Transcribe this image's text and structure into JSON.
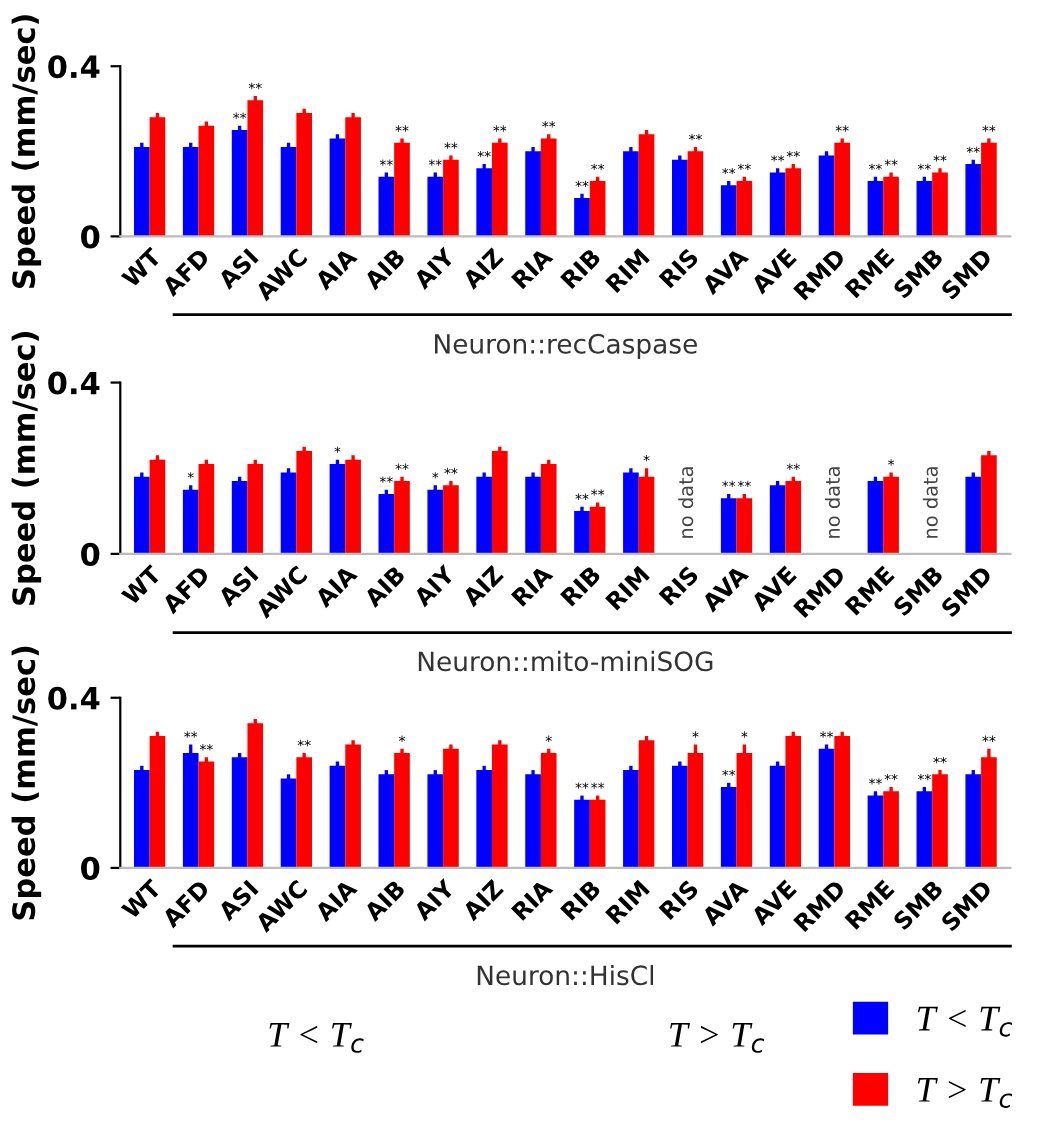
{
  "chart_data": [
    {
      "type": "bar",
      "xlabel": "Neuron::recCaspase",
      "ylabel": "Speed (mm/sec)",
      "categories": [
        "WT",
        "AFD",
        "ASI",
        "AWC",
        "AIA",
        "AIB",
        "AIY",
        "AIZ",
        "RIA",
        "RIB",
        "RIM",
        "RIS",
        "AVA",
        "AVE",
        "RMD",
        "RME",
        "SMB",
        "SMD"
      ],
      "series": [
        {
          "name": "T < T$_{c}$",
          "color": "#0000ff",
          "values": [
            0.21,
            0.21,
            0.25,
            0.21,
            0.23,
            0.14,
            0.14,
            0.16,
            0.2,
            0.09,
            0.2,
            0.18,
            0.12,
            0.15,
            0.19,
            0.13,
            0.13,
            0.17
          ],
          "errors": [
            0.01,
            0.01,
            0.01,
            0.01,
            0.01,
            0.01,
            0.01,
            0.01,
            0.01,
            0.01,
            0.01,
            0.01,
            0.01,
            0.01,
            0.01,
            0.01,
            0.01,
            0.01
          ],
          "value_labels": [
            null,
            null,
            "**",
            null,
            null,
            "**",
            "**",
            "**",
            null,
            "**",
            null,
            null,
            "**",
            "**",
            null,
            "**",
            "**",
            "**"
          ]
        },
        {
          "name": "T > T$_{c}$",
          "color": "#ff0000",
          "values": [
            0.28,
            0.26,
            0.32,
            0.29,
            0.28,
            0.22,
            0.18,
            0.22,
            0.23,
            0.13,
            0.24,
            0.2,
            0.13,
            0.16,
            0.22,
            0.14,
            0.15,
            0.22
          ],
          "errors": [
            0.01,
            0.01,
            0.01,
            0.01,
            0.01,
            0.01,
            0.01,
            0.01,
            0.01,
            0.01,
            0.01,
            0.01,
            0.01,
            0.01,
            0.01,
            0.01,
            0.01,
            0.01
          ],
          "value_labels": [
            null,
            null,
            "**",
            null,
            null,
            "**",
            "**",
            "**",
            "**",
            "**",
            null,
            "**",
            "**",
            "**",
            "**",
            "**",
            "**",
            "**"
          ]
        }
      ],
      "ylim": [
        0,
        0.4
      ],
      "yticks": [
        0,
        0.4
      ],
      "grid": false,
      "legend": "bottom right"
    },
    {
      "type": "bar",
      "xlabel": "Neuron::mito-miniSOG",
      "ylabel": "Speed (mm/sec)",
      "categories": [
        "WT",
        "AFD",
        "ASI",
        "AWC",
        "AIA",
        "AIB",
        "AIY",
        "AIZ",
        "RIA",
        "RIB",
        "RIM",
        "RIS",
        "AVA",
        "AVE",
        "RMD",
        "RME",
        "SMB",
        "SMD"
      ],
      "series": [
        {
          "color": "#0000ff",
          "values": [
            0.18,
            0.15,
            0.17,
            0.19,
            0.21,
            0.14,
            0.15,
            0.18,
            0.18,
            0.1,
            0.19,
            null,
            0.13,
            0.16,
            null,
            0.17,
            null,
            0.18
          ],
          "errors": [
            0.01,
            0.01,
            0.01,
            0.01,
            0.01,
            0.01,
            0.01,
            0.01,
            0.01,
            0.01,
            0.01,
            null,
            0.01,
            0.01,
            null,
            0.01,
            null,
            0.01
          ],
          "value_labels": [
            null,
            "*",
            null,
            null,
            "*",
            "**",
            "*",
            null,
            null,
            "**",
            null,
            null,
            "**",
            null,
            null,
            null,
            null,
            null
          ]
        },
        {
          "color": "#ff0000",
          "values": [
            0.22,
            0.21,
            0.21,
            0.24,
            0.22,
            0.17,
            0.16,
            0.24,
            0.21,
            0.11,
            0.18,
            null,
            0.13,
            0.17,
            null,
            0.18,
            null,
            0.23
          ],
          "errors": [
            0.01,
            0.01,
            0.01,
            0.01,
            0.01,
            0.01,
            0.01,
            0.01,
            0.01,
            0.01,
            0.02,
            null,
            0.01,
            0.01,
            null,
            0.01,
            null,
            0.01
          ],
          "value_labels": [
            null,
            null,
            null,
            null,
            null,
            "**",
            "**",
            null,
            null,
            "**",
            "*",
            null,
            "**",
            "**",
            null,
            "*",
            null,
            null
          ]
        }
      ],
      "annotations": [
        "no data",
        "no data",
        "no data"
      ],
      "ylim": [
        0,
        0.4
      ],
      "yticks": [
        0,
        0.4
      ],
      "grid": false
    },
    {
      "type": "bar",
      "xlabel": "Neuron::HisCl",
      "ylabel": "Speed (mm/sec)",
      "categories": [
        "WT",
        "AFD",
        "ASI",
        "AWC",
        "AIA",
        "AIB",
        "AIY",
        "AIZ",
        "RIA",
        "RIB",
        "RIM",
        "RIS",
        "AVA",
        "AVE",
        "RMD",
        "RME",
        "SMB",
        "SMD"
      ],
      "series": [
        {
          "color": "#0000ff",
          "values": [
            0.23,
            0.27,
            0.26,
            0.21,
            0.24,
            0.22,
            0.22,
            0.23,
            0.22,
            0.16,
            0.23,
            0.24,
            0.19,
            0.24,
            0.28,
            0.17,
            0.18,
            0.22
          ],
          "errors": [
            0.01,
            0.02,
            0.01,
            0.01,
            0.01,
            0.01,
            0.01,
            0.01,
            0.01,
            0.01,
            0.01,
            0.01,
            0.01,
            0.01,
            0.01,
            0.01,
            0.01,
            0.01
          ],
          "value_labels": [
            null,
            "**",
            null,
            null,
            null,
            null,
            null,
            null,
            null,
            "**",
            null,
            null,
            "**",
            null,
            "**",
            "**",
            "**",
            null
          ]
        },
        {
          "color": "#ff0000",
          "values": [
            0.31,
            0.25,
            0.34,
            0.26,
            0.29,
            0.27,
            0.28,
            0.29,
            0.27,
            0.16,
            0.3,
            0.27,
            0.27,
            0.31,
            0.31,
            0.18,
            0.22,
            0.26
          ],
          "errors": [
            0.01,
            0.01,
            0.01,
            0.01,
            0.01,
            0.01,
            0.01,
            0.01,
            0.01,
            0.01,
            0.01,
            0.02,
            0.02,
            0.01,
            0.01,
            0.01,
            0.01,
            0.02
          ],
          "value_labels": [
            null,
            "**",
            null,
            "**",
            null,
            "*",
            null,
            null,
            "*",
            "**",
            null,
            "*",
            "*",
            null,
            null,
            "**",
            "**",
            "**"
          ]
        }
      ],
      "annotations": [
        "T < T$_{c}$",
        "T > T$_{c}$"
      ],
      "ylim": [
        0,
        0.4
      ],
      "yticks": [
        0,
        0.4
      ],
      "grid": false
    }
  ]
}
